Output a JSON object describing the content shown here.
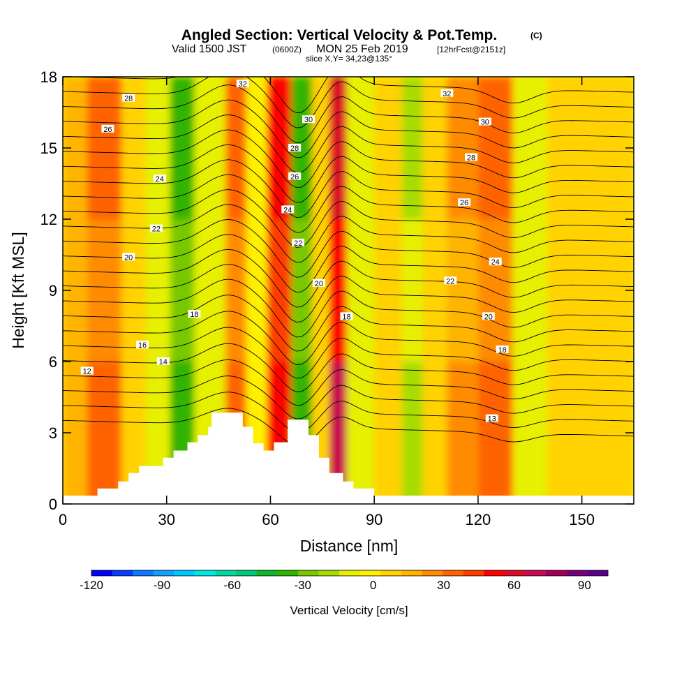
{
  "chart_data": {
    "type": "heatmap",
    "title": "Angled Section: Vertical Velocity & Pot.Temp.",
    "title_unit": "(C)",
    "subtitle_main_a": "Valid 1500 JST",
    "subtitle_utc": "(0600Z)",
    "subtitle_main_b": "MON 25 Feb 2019",
    "subtitle_fcst": "[12hrFcst@2151z]",
    "slice_label": "slice X,Y= 34,23@135°",
    "xlabel": "Distance [nm]",
    "ylabel": "Height [Kft MSL]",
    "xlim": [
      0,
      165
    ],
    "ylim": [
      0,
      18
    ],
    "xticks": [
      "0",
      "30",
      "60",
      "90",
      "120",
      "150"
    ],
    "xtick_values": [
      0,
      30,
      60,
      90,
      120,
      150
    ],
    "yticks": [
      "0",
      "3",
      "6",
      "9",
      "12",
      "15",
      "18"
    ],
    "ytick_values": [
      0,
      3,
      6,
      9,
      12,
      15,
      18
    ],
    "colorbar": {
      "title": "Vertical Velocity [cm/s]",
      "min": -120,
      "max": 100,
      "tick_labels": [
        "-120",
        "-90",
        "-60",
        "-30",
        "0",
        "30",
        "60",
        "90"
      ],
      "tick_values": [
        -120,
        -90,
        -60,
        -30,
        0,
        30,
        60,
        90
      ],
      "colors": [
        "#0000ff",
        "#0a3cff",
        "#0f78ff",
        "#14a0ff",
        "#00c8ff",
        "#00e6e6",
        "#00d8a0",
        "#00c878",
        "#10b828",
        "#30b400",
        "#78c800",
        "#a8dc00",
        "#e6f000",
        "#fff000",
        "#ffd200",
        "#ffb400",
        "#ff8c00",
        "#ff6400",
        "#ff3c00",
        "#ff0000",
        "#dc0a28",
        "#c80a50",
        "#a0005a",
        "#780078",
        "#5a008c"
      ]
    },
    "terrain_height_kft": [
      {
        "x": 0,
        "h": 0.35
      },
      {
        "x": 10,
        "h": 0.35
      },
      {
        "x": 10,
        "h": 0.65
      },
      {
        "x": 16,
        "h": 0.65
      },
      {
        "x": 16,
        "h": 0.95
      },
      {
        "x": 19,
        "h": 0.95
      },
      {
        "x": 19,
        "h": 1.3
      },
      {
        "x": 22,
        "h": 1.3
      },
      {
        "x": 22,
        "h": 1.6
      },
      {
        "x": 29,
        "h": 1.6
      },
      {
        "x": 29,
        "h": 1.95
      },
      {
        "x": 32,
        "h": 1.95
      },
      {
        "x": 32,
        "h": 2.25
      },
      {
        "x": 36,
        "h": 2.25
      },
      {
        "x": 36,
        "h": 2.6
      },
      {
        "x": 39,
        "h": 2.6
      },
      {
        "x": 39,
        "h": 2.9
      },
      {
        "x": 42,
        "h": 2.9
      },
      {
        "x": 42,
        "h": 3.25
      },
      {
        "x": 43,
        "h": 3.25
      },
      {
        "x": 43,
        "h": 3.85
      },
      {
        "x": 52,
        "h": 3.85
      },
      {
        "x": 52,
        "h": 3.25
      },
      {
        "x": 55,
        "h": 3.25
      },
      {
        "x": 55,
        "h": 2.55
      },
      {
        "x": 58,
        "h": 2.55
      },
      {
        "x": 58,
        "h": 2.25
      },
      {
        "x": 61,
        "h": 2.25
      },
      {
        "x": 61,
        "h": 2.6
      },
      {
        "x": 65,
        "h": 2.6
      },
      {
        "x": 65,
        "h": 3.55
      },
      {
        "x": 71,
        "h": 3.55
      },
      {
        "x": 71,
        "h": 2.9
      },
      {
        "x": 74,
        "h": 2.9
      },
      {
        "x": 74,
        "h": 1.95
      },
      {
        "x": 77,
        "h": 1.95
      },
      {
        "x": 77,
        "h": 1.3
      },
      {
        "x": 81,
        "h": 1.3
      },
      {
        "x": 81,
        "h": 0.95
      },
      {
        "x": 84,
        "h": 0.95
      },
      {
        "x": 84,
        "h": 0.65
      },
      {
        "x": 90,
        "h": 0.65
      },
      {
        "x": 90,
        "h": 0.35
      },
      {
        "x": 165,
        "h": 0.35
      }
    ],
    "vertical_velocity_cells_cm_s": [
      {
        "x": [
          0,
          7
        ],
        "v": 20
      },
      {
        "x": [
          7,
          17
        ],
        "v": 35
      },
      {
        "x": [
          17,
          24
        ],
        "v": 5
      },
      {
        "x": [
          24,
          31
        ],
        "v": -15
      },
      {
        "x": [
          31,
          38
        ],
        "v": -45
      },
      {
        "x": [
          38,
          47
        ],
        "v": -10
      },
      {
        "x": [
          47,
          53
        ],
        "v": 40
      },
      {
        "x": [
          53,
          59
        ],
        "v": -5
      },
      {
        "x": [
          59,
          66
        ],
        "v": 60
      },
      {
        "x": [
          66,
          72
        ],
        "v": -40
      },
      {
        "x": [
          72,
          77
        ],
        "v": 5
      },
      {
        "x": [
          77,
          82
        ],
        "v": 75
      },
      {
        "x": [
          82,
          90
        ],
        "v": -10
      },
      {
        "x": [
          90,
          98
        ],
        "v": 5
      },
      {
        "x": [
          98,
          104
        ],
        "v": -20
      },
      {
        "x": [
          104,
          111
        ],
        "v": 5
      },
      {
        "x": [
          111,
          120
        ],
        "v": 25
      },
      {
        "x": [
          120,
          130
        ],
        "v": 40
      },
      {
        "x": [
          130,
          140
        ],
        "v": -15
      },
      {
        "x": [
          140,
          152
        ],
        "v": 10
      },
      {
        "x": [
          152,
          165
        ],
        "v": 5
      }
    ],
    "pot_temp_contours_c": {
      "levels": [
        11,
        12,
        13,
        14,
        15,
        16,
        17,
        18,
        19,
        20,
        21,
        22,
        23,
        24,
        25,
        26,
        27,
        28,
        29,
        30,
        31,
        32,
        33,
        34
      ],
      "labels": [
        {
          "text": "12",
          "x": 7,
          "y": 5.6
        },
        {
          "text": "14",
          "x": 29,
          "y": 6.0
        },
        {
          "text": "16",
          "x": 23,
          "y": 6.7
        },
        {
          "text": "18",
          "x": 38,
          "y": 8.0
        },
        {
          "text": "20",
          "x": 19,
          "y": 10.4
        },
        {
          "text": "22",
          "x": 27,
          "y": 11.6
        },
        {
          "text": "24",
          "x": 28,
          "y": 13.7
        },
        {
          "text": "26",
          "x": 13,
          "y": 15.8
        },
        {
          "text": "28",
          "x": 19,
          "y": 17.1
        },
        {
          "text": "32",
          "x": 52,
          "y": 17.7
        },
        {
          "text": "30",
          "x": 71,
          "y": 16.2
        },
        {
          "text": "28",
          "x": 67,
          "y": 15.0
        },
        {
          "text": "26",
          "x": 67,
          "y": 13.8
        },
        {
          "text": "24",
          "x": 65,
          "y": 12.4
        },
        {
          "text": "22",
          "x": 68,
          "y": 11.0
        },
        {
          "text": "20",
          "x": 74,
          "y": 9.3
        },
        {
          "text": "18",
          "x": 82,
          "y": 7.9
        },
        {
          "text": "32",
          "x": 111,
          "y": 17.3
        },
        {
          "text": "30",
          "x": 122,
          "y": 16.1
        },
        {
          "text": "28",
          "x": 118,
          "y": 14.6
        },
        {
          "text": "26",
          "x": 116,
          "y": 12.7
        },
        {
          "text": "24",
          "x": 125,
          "y": 10.2
        },
        {
          "text": "22",
          "x": 112,
          "y": 9.4
        },
        {
          "text": "20",
          "x": 123,
          "y": 7.9
        },
        {
          "text": "18",
          "x": 127,
          "y": 6.5
        },
        {
          "text": "13",
          "x": 124,
          "y": 3.6
        }
      ]
    }
  }
}
